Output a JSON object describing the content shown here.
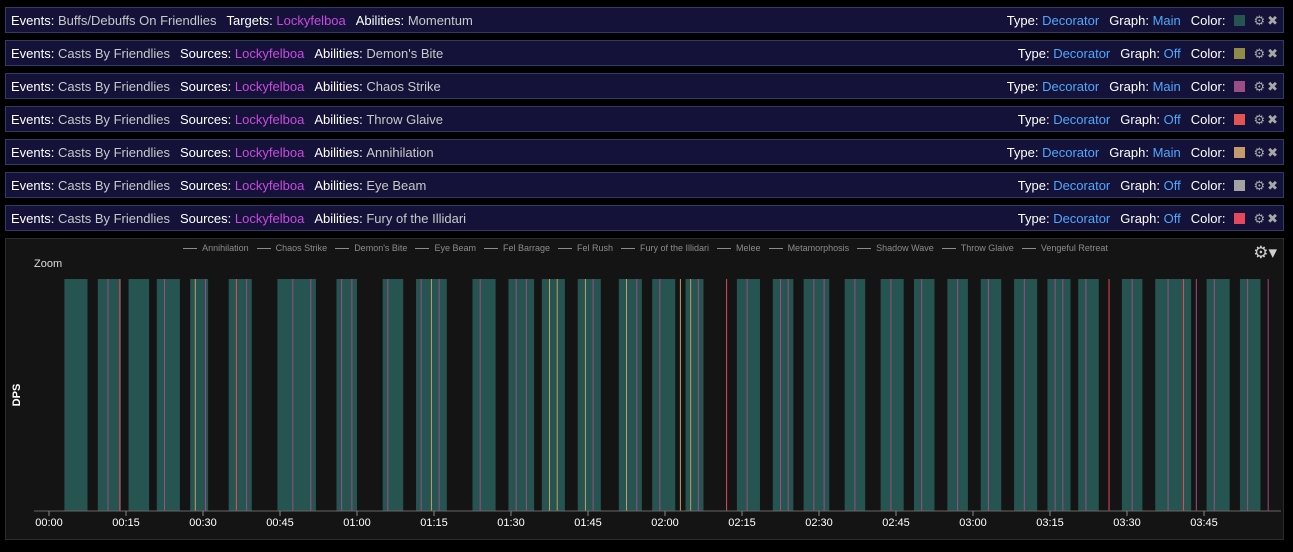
{
  "filters": [
    {
      "events": "Buffs/Debuffs On Friendlies",
      "who_label": "Targets",
      "who": "Lockyfelboa",
      "ability": "Momentum",
      "type": "Decorator",
      "graph": "Main",
      "color": "#265450"
    },
    {
      "events": "Casts By Friendlies",
      "who_label": "Sources",
      "who": "Lockyfelboa",
      "ability": "Demon's Bite",
      "type": "Decorator",
      "graph": "Off",
      "color": "#8f8c47"
    },
    {
      "events": "Casts By Friendlies",
      "who_label": "Sources",
      "who": "Lockyfelboa",
      "ability": "Chaos Strike",
      "type": "Decorator",
      "graph": "Main",
      "color": "#9b4d86"
    },
    {
      "events": "Casts By Friendlies",
      "who_label": "Sources",
      "who": "Lockyfelboa",
      "ability": "Throw Glaive",
      "type": "Decorator",
      "graph": "Off",
      "color": "#e05454"
    },
    {
      "events": "Casts By Friendlies",
      "who_label": "Sources",
      "who": "Lockyfelboa",
      "ability": "Annihilation",
      "type": "Decorator",
      "graph": "Main",
      "color": "#c49b6a"
    },
    {
      "events": "Casts By Friendlies",
      "who_label": "Sources",
      "who": "Lockyfelboa",
      "ability": "Eye Beam",
      "type": "Decorator",
      "graph": "Off",
      "color": "#a3a3a3"
    },
    {
      "events": "Casts By Friendlies",
      "who_label": "Sources",
      "who": "Lockyfelboa",
      "ability": "Fury of the Illidari",
      "type": "Decorator",
      "graph": "Off",
      "color": "#e5485e"
    }
  ],
  "labels": {
    "events": "Events:",
    "abilities": "Abilities:",
    "type": "Type:",
    "graph": "Graph:",
    "color": "Color:"
  },
  "graph_panel": {
    "zoom_label": "Zoom",
    "y_axis_label": "DPS"
  },
  "chart_data": {
    "type": "area",
    "legend": [
      "Annihilation",
      "Chaos Strike",
      "Demon's Bite",
      "Eye Beam",
      "Fel Barrage",
      "Fel Rush",
      "Fury of the Illidari",
      "Melee",
      "Metamorphosis",
      "Shadow Wave",
      "Throw Glaive",
      "Vengeful Retreat"
    ],
    "x_ticks": [
      "00:00",
      "00:15",
      "00:30",
      "00:45",
      "01:00",
      "01:15",
      "01:30",
      "01:45",
      "02:00",
      "02:15",
      "02:30",
      "02:45",
      "03:00",
      "03:15",
      "03:30",
      "03:45"
    ],
    "xlim_seconds": [
      0,
      240
    ],
    "momentum_color": "#265450",
    "momentum_intervals": [
      [
        3,
        7.5
      ],
      [
        9.5,
        14
      ],
      [
        15.5,
        19.5
      ],
      [
        21,
        25.5
      ],
      [
        27.5,
        31
      ],
      [
        35,
        39.5
      ],
      [
        44.5,
        52
      ],
      [
        56,
        60
      ],
      [
        65,
        69
      ],
      [
        71.5,
        77.5
      ],
      [
        82.5,
        87
      ],
      [
        89.5,
        94.5
      ],
      [
        96,
        100.5
      ],
      [
        103,
        107.5
      ],
      [
        111,
        115.5
      ],
      [
        117.5,
        122
      ],
      [
        124,
        127.5
      ],
      [
        134,
        138.5
      ],
      [
        141,
        145
      ],
      [
        147,
        152
      ],
      [
        155,
        159
      ],
      [
        162,
        166.5
      ],
      [
        168.5,
        172.5
      ],
      [
        175,
        179
      ],
      [
        181.5,
        185.5
      ],
      [
        188,
        192.5
      ],
      [
        194.5,
        199
      ],
      [
        200.5,
        204.5
      ],
      [
        209,
        213
      ],
      [
        215.5,
        222.5
      ],
      [
        225.5,
        230
      ],
      [
        232,
        236
      ]
    ],
    "markers": [
      {
        "t": 11.5,
        "ability": "Chaos Strike",
        "color": "#9b4d86"
      },
      {
        "t": 13.8,
        "ability": "Fury of the Illidari",
        "color": "#e5485e"
      },
      {
        "t": 22.5,
        "ability": "Chaos Strike",
        "color": "#9b4d86"
      },
      {
        "t": 28.5,
        "ability": "Annihilation",
        "color": "#c49b6a"
      },
      {
        "t": 30.5,
        "ability": "Chaos Strike",
        "color": "#9b4d86"
      },
      {
        "t": 36.5,
        "ability": "Throw Glaive",
        "color": "#e05454"
      },
      {
        "t": 38.5,
        "ability": "Chaos Strike",
        "color": "#9b4d86"
      },
      {
        "t": 47.5,
        "ability": "Chaos Strike",
        "color": "#9b4d86"
      },
      {
        "t": 51,
        "ability": "Chaos Strike",
        "color": "#9b4d86"
      },
      {
        "t": 57,
        "ability": "Chaos Strike",
        "color": "#9b4d86"
      },
      {
        "t": 59,
        "ability": "Chaos Strike",
        "color": "#9b4d86"
      },
      {
        "t": 66,
        "ability": "Chaos Strike",
        "color": "#9b4d86"
      },
      {
        "t": 72.5,
        "ability": "Chaos Strike",
        "color": "#9b4d86"
      },
      {
        "t": 74.5,
        "ability": "Annihilation",
        "color": "#c49b6a"
      },
      {
        "t": 76,
        "ability": "Chaos Strike",
        "color": "#9b4d86"
      },
      {
        "t": 84,
        "ability": "Chaos Strike",
        "color": "#9b4d86"
      },
      {
        "t": 91,
        "ability": "Chaos Strike",
        "color": "#9b4d86"
      },
      {
        "t": 93,
        "ability": "Chaos Strike",
        "color": "#9b4d86"
      },
      {
        "t": 97.5,
        "ability": "Annihilation",
        "color": "#c49b6a"
      },
      {
        "t": 99,
        "ability": "Annihilation",
        "color": "#c49b6a"
      },
      {
        "t": 104.5,
        "ability": "Annihilation",
        "color": "#c49b6a"
      },
      {
        "t": 106,
        "ability": "Chaos Strike",
        "color": "#9b4d86"
      },
      {
        "t": 112.5,
        "ability": "Annihilation",
        "color": "#c49b6a"
      },
      {
        "t": 114.5,
        "ability": "Chaos Strike",
        "color": "#9b4d86"
      },
      {
        "t": 119,
        "ability": "Chaos Strike",
        "color": "#9b4d86"
      },
      {
        "t": 123,
        "ability": "Annihilation",
        "color": "#c49b6a"
      },
      {
        "t": 125,
        "ability": "Annihilation",
        "color": "#c49b6a"
      },
      {
        "t": 126.5,
        "ability": "Chaos Strike",
        "color": "#9b4d86"
      },
      {
        "t": 132,
        "ability": "Fury of the Illidari",
        "color": "#e5485e"
      },
      {
        "t": 136,
        "ability": "Chaos Strike",
        "color": "#9b4d86"
      },
      {
        "t": 142.5,
        "ability": "Chaos Strike",
        "color": "#9b4d86"
      },
      {
        "t": 144,
        "ability": "Chaos Strike",
        "color": "#9b4d86"
      },
      {
        "t": 149,
        "ability": "Chaos Strike",
        "color": "#9b4d86"
      },
      {
        "t": 151,
        "ability": "Chaos Strike",
        "color": "#9b4d86"
      },
      {
        "t": 157,
        "ability": "Chaos Strike",
        "color": "#9b4d86"
      },
      {
        "t": 164,
        "ability": "Chaos Strike",
        "color": "#9b4d86"
      },
      {
        "t": 170,
        "ability": "Chaos Strike",
        "color": "#9b4d86"
      },
      {
        "t": 177,
        "ability": "Chaos Strike",
        "color": "#9b4d86"
      },
      {
        "t": 183,
        "ability": "Chaos Strike",
        "color": "#9b4d86"
      },
      {
        "t": 190,
        "ability": "Chaos Strike",
        "color": "#9b4d86"
      },
      {
        "t": 196,
        "ability": "Chaos Strike",
        "color": "#9b4d86"
      },
      {
        "t": 197.5,
        "ability": "Chaos Strike",
        "color": "#9b4d86"
      },
      {
        "t": 202,
        "ability": "Chaos Strike",
        "color": "#9b4d86"
      },
      {
        "t": 206.5,
        "ability": "Fury of the Illidari",
        "color": "#e5485e"
      },
      {
        "t": 211,
        "ability": "Chaos Strike",
        "color": "#9b4d86"
      },
      {
        "t": 218,
        "ability": "Chaos Strike",
        "color": "#9b4d86"
      },
      {
        "t": 221,
        "ability": "Fury of the Illidari",
        "color": "#e5485e"
      },
      {
        "t": 223.5,
        "ability": "Chaos Strike",
        "color": "#9b4d86"
      },
      {
        "t": 227,
        "ability": "Chaos Strike",
        "color": "#9b4d86"
      },
      {
        "t": 233.5,
        "ability": "Chaos Strike",
        "color": "#9b4d86"
      },
      {
        "t": 237.5,
        "ability": "Chaos Strike",
        "color": "#9b4d86"
      }
    ]
  }
}
